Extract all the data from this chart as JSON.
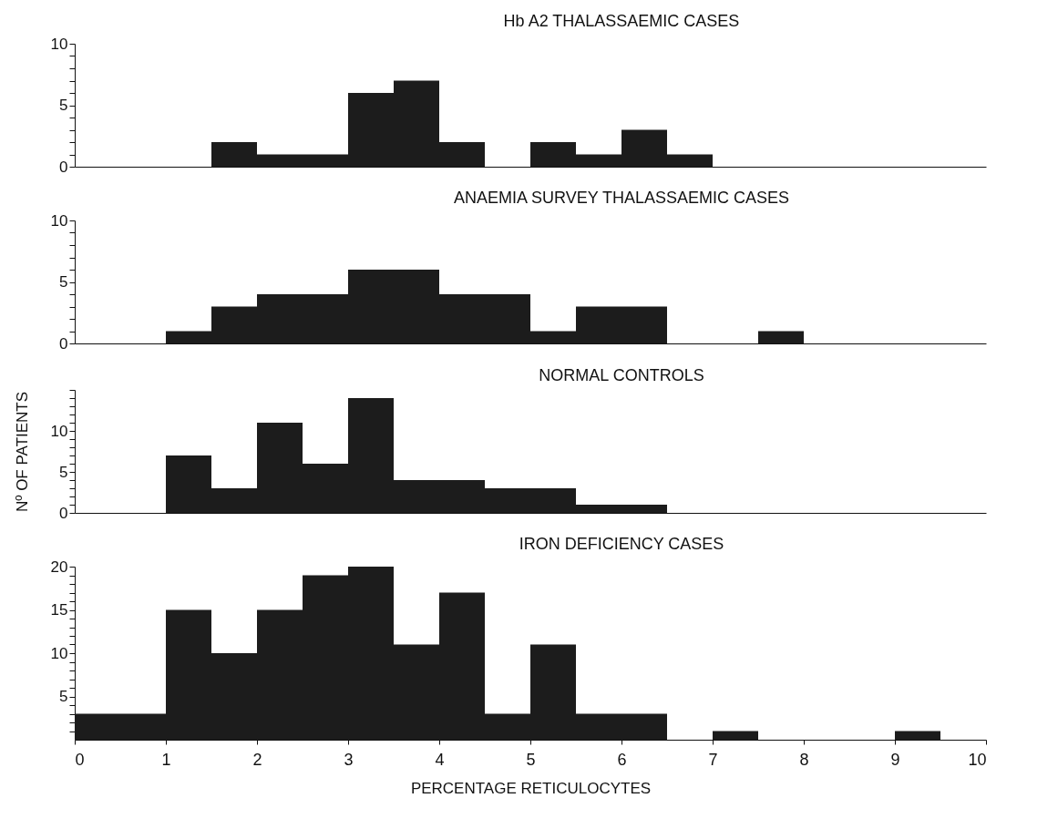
{
  "chart_data": [
    {
      "type": "histogram",
      "title": "Hb A2  THALASSAEMIC  CASES",
      "bins": [
        0,
        0.5,
        1,
        1.5,
        2,
        2.5,
        3,
        3.5,
        4,
        4.5,
        5,
        5.5,
        6,
        6.5,
        7,
        7.5,
        8,
        8.5,
        9,
        9.5,
        10
      ],
      "values": [
        0,
        0,
        0,
        2,
        1,
        1,
        6,
        7,
        2,
        0,
        2,
        1,
        3,
        1,
        0,
        0,
        0,
        0,
        0,
        0
      ],
      "color": "#1c1c1c",
      "xlim": [
        0,
        10
      ],
      "ylim": [
        0,
        10
      ],
      "yticks": [
        0,
        {
          "value": 1,
          "label": null
        },
        {
          "value": 2,
          "label": null
        },
        {
          "value": 3,
          "label": null
        },
        {
          "value": 4,
          "label": null
        },
        5,
        {
          "value": 6,
          "label": null
        },
        {
          "value": 7,
          "label": null
        },
        {
          "value": 8,
          "label": null
        },
        {
          "value": 9,
          "label": null
        },
        10
      ],
      "tick_labels": "y",
      "grid": false
    },
    {
      "type": "histogram",
      "title": "ANAEMIA  SURVEY  THALASSAEMIC  CASES",
      "bins": [
        0,
        0.5,
        1,
        1.5,
        2,
        2.5,
        3,
        3.5,
        4,
        4.5,
        5,
        5.5,
        6,
        6.5,
        7,
        7.5,
        8,
        8.5,
        9,
        9.5,
        10
      ],
      "values": [
        0,
        0,
        1,
        3,
        4,
        4,
        6,
        6,
        4,
        4,
        1,
        3,
        3,
        0,
        0,
        1,
        0,
        0,
        0,
        0
      ],
      "color": "#1c1c1c",
      "xlim": [
        0,
        10
      ],
      "ylim": [
        0,
        10
      ],
      "yticks": [
        0,
        {
          "value": 1,
          "label": null
        },
        {
          "value": 2,
          "label": null
        },
        {
          "value": 3,
          "label": null
        },
        {
          "value": 4,
          "label": null
        },
        5,
        {
          "value": 6,
          "label": null
        },
        {
          "value": 7,
          "label": null
        },
        {
          "value": 8,
          "label": null
        },
        {
          "value": 9,
          "label": null
        },
        10
      ],
      "tick_labels": "y",
      "grid": false
    },
    {
      "type": "histogram",
      "title": "NORMAL   CONTROLS",
      "ylabel": "Nº OF PATIENTS",
      "bins": [
        0,
        0.5,
        1,
        1.5,
        2,
        2.5,
        3,
        3.5,
        4,
        4.5,
        5,
        5.5,
        6,
        6.5,
        7,
        7.5,
        8,
        8.5,
        9,
        9.5,
        10
      ],
      "values": [
        0,
        0,
        7,
        3,
        11,
        6,
        14,
        4,
        4,
        3,
        3,
        1,
        1,
        0,
        0,
        0,
        0,
        0,
        0,
        0
      ],
      "color": "#1c1c1c",
      "xlim": [
        0,
        10
      ],
      "ylim": [
        0,
        15
      ],
      "yticks": [
        0,
        {
          "value": 1,
          "label": null
        },
        {
          "value": 2,
          "label": null
        },
        {
          "value": 3,
          "label": null
        },
        {
          "value": 4,
          "label": null
        },
        5,
        {
          "value": 6,
          "label": null
        },
        {
          "value": 7,
          "label": null
        },
        {
          "value": 8,
          "label": null
        },
        {
          "value": 9,
          "label": null
        },
        10,
        {
          "value": 11,
          "label": null
        },
        {
          "value": 12,
          "label": null
        },
        {
          "value": 13,
          "label": null
        },
        {
          "value": 14,
          "label": null
        },
        {
          "value": 15,
          "label": null
        }
      ],
      "tick_labels": "y",
      "grid": false
    },
    {
      "type": "histogram",
      "title": "IRON  DEFICIENCY  CASES",
      "xlabel": "PERCENTAGE   RETICULOCYTES",
      "bins": [
        0,
        0.5,
        1,
        1.5,
        2,
        2.5,
        3,
        3.5,
        4,
        4.5,
        5,
        5.5,
        6,
        6.5,
        7,
        7.5,
        8,
        8.5,
        9,
        9.5,
        10
      ],
      "values": [
        3,
        3,
        15,
        10,
        15,
        19,
        20,
        11,
        17,
        3,
        11,
        3,
        3,
        0,
        1,
        0,
        0,
        0,
        1,
        0
      ],
      "color": "#1c1c1c",
      "xlim": [
        0,
        10
      ],
      "xticks": [
        0,
        1,
        2,
        3,
        4,
        5,
        6,
        7,
        8,
        9,
        10
      ],
      "ylim": [
        0,
        20
      ],
      "yticks": [
        {
          "value": 1,
          "label": null
        },
        {
          "value": 2,
          "label": null
        },
        {
          "value": 3,
          "label": null
        },
        {
          "value": 4,
          "label": null
        },
        5,
        {
          "value": 6,
          "label": null
        },
        {
          "value": 7,
          "label": null
        },
        {
          "value": 8,
          "label": null
        },
        {
          "value": 9,
          "label": null
        },
        10,
        {
          "value": 11,
          "label": null
        },
        {
          "value": 12,
          "label": null
        },
        {
          "value": 13,
          "label": null
        },
        {
          "value": 14,
          "label": null
        },
        15,
        {
          "value": 16,
          "label": null
        },
        {
          "value": 17,
          "label": null
        },
        {
          "value": 18,
          "label": null
        },
        {
          "value": 19,
          "label": null
        },
        20
      ],
      "grid": false
    }
  ]
}
